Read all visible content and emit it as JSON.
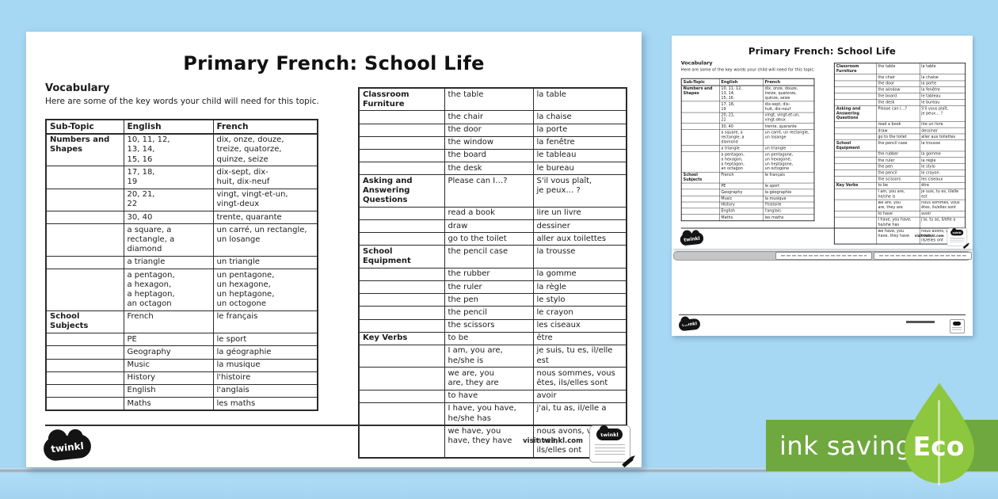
{
  "sheet": {
    "title": "Primary French: School Life",
    "heading": "Vocabulary",
    "subheading": "Here are some of the key words your child will need for this topic.",
    "columns": [
      "Sub-Topic",
      "English",
      "French"
    ],
    "left_rows": [
      {
        "subtopic": "Numbers and Shapes",
        "english": "10, 11, 12,\n13, 14,\n15, 16",
        "french": "dix, onze, douze,\ntreize, quatorze,\nquinze, seize"
      },
      {
        "subtopic": "",
        "english": "17, 18,\n19",
        "french": "dix-sept, dix-\nhuit, dix-neuf"
      },
      {
        "subtopic": "",
        "english": "20, 21,\n22",
        "french": "vingt, vingt-et-un,\nvingt-deux"
      },
      {
        "subtopic": "",
        "english": "30, 40",
        "french": "trente, quarante"
      },
      {
        "subtopic": "",
        "english": "a square, a\nrectangle, a diamond",
        "french": "un carré, un rectangle,\nun losange"
      },
      {
        "subtopic": "",
        "english": "a triangle",
        "french": "un triangle"
      },
      {
        "subtopic": "",
        "english": "a pentagon,\na hexagon,\na heptagon,\nan octagon",
        "french": "un pentagone,\nun hexagone,\nun heptagone,\nun octogone"
      },
      {
        "subtopic": "School Subjects",
        "english": "French",
        "french": "le français"
      },
      {
        "subtopic": "",
        "english": "PE",
        "french": "le sport"
      },
      {
        "subtopic": "",
        "english": "Geography",
        "french": "la géographie"
      },
      {
        "subtopic": "",
        "english": "Music",
        "french": "la musique"
      },
      {
        "subtopic": "",
        "english": "History",
        "french": "l'histoire"
      },
      {
        "subtopic": "",
        "english": "English",
        "french": "l'anglais"
      },
      {
        "subtopic": "",
        "english": "Maths",
        "french": "les maths"
      }
    ],
    "right_rows": [
      {
        "subtopic": "Classroom Furniture",
        "english": "the table",
        "french": "la table"
      },
      {
        "subtopic": "",
        "english": "the chair",
        "french": "la chaise"
      },
      {
        "subtopic": "",
        "english": "the door",
        "french": "la porte"
      },
      {
        "subtopic": "",
        "english": "the window",
        "french": "la fenêtre"
      },
      {
        "subtopic": "",
        "english": "the board",
        "french": "le tableau"
      },
      {
        "subtopic": "",
        "english": "the desk",
        "french": "le bureau"
      },
      {
        "subtopic": "Asking and Answering Questions",
        "english": "Please can I…?",
        "french": "S'il vous plaît,\nje peux… ?"
      },
      {
        "subtopic": "",
        "english": "read a book",
        "french": "lire un livre"
      },
      {
        "subtopic": "",
        "english": "draw",
        "french": "dessiner"
      },
      {
        "subtopic": "",
        "english": "go to the toilet",
        "french": "aller aux toilettes"
      },
      {
        "subtopic": "School Equipment",
        "english": "the pencil case",
        "french": "la trousse"
      },
      {
        "subtopic": "",
        "english": "the rubber",
        "french": "la gomme"
      },
      {
        "subtopic": "",
        "english": "the ruler",
        "french": "la règle"
      },
      {
        "subtopic": "",
        "english": "the pen",
        "french": "le stylo"
      },
      {
        "subtopic": "",
        "english": "the pencil",
        "french": "le crayon"
      },
      {
        "subtopic": "",
        "english": "the scissors",
        "french": "les ciseaux"
      },
      {
        "subtopic": "Key Verbs",
        "english": "to be",
        "french": "être"
      },
      {
        "subtopic": "",
        "english": "I am, you are, he/she is",
        "french": "je suis, tu es, il/elle est"
      },
      {
        "subtopic": "",
        "english": "we are, you\nare, they are",
        "french": "nous sommes, vous\nêtes, ils/elles sont"
      },
      {
        "subtopic": "",
        "english": "to have",
        "french": "avoir"
      },
      {
        "subtopic": "",
        "english": "I have, you have,\nhe/she has",
        "french": "j'ai, tu as, il/elle a"
      },
      {
        "subtopic": "",
        "english": "we have, you\nhave, they have",
        "french": "nous avons, vous avez,\nils/elles ont"
      }
    ],
    "brand": "twinkl",
    "visit": "visit twinkl.com"
  },
  "badge": {
    "label": "ink saving",
    "eco": "Eco"
  },
  "colors": {
    "background": "#a6d7f3",
    "banner": "#6fa83e",
    "leaf": "#8dc63f"
  }
}
